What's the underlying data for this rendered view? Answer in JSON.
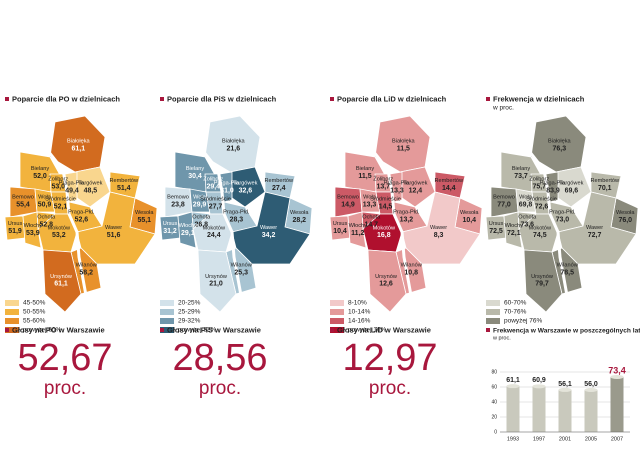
{
  "district_names": [
    "Białołęka",
    "Bielany",
    "Targówek",
    "Bemowo",
    "Żoliborz",
    "Praga-Płn.",
    "Wola",
    "Śródmieście",
    "Praga-Płd.",
    "Rembertów",
    "Wesoła",
    "Ursus",
    "Ochota",
    "Włochy",
    "Mokotów",
    "Wawer",
    "Wilanów",
    "Ursynów"
  ],
  "maps": [
    {
      "title": "Poparcie dla PO w dzielnicach",
      "values": [
        "61,1",
        "52,0",
        "48,5",
        "55,4",
        "53,0",
        "49,4",
        "50,9",
        "52,1",
        "52,6",
        "51,4",
        "55,1",
        "51,9",
        "52,8",
        "53,9",
        "53,2",
        "51,6",
        "58,2",
        "61,1"
      ],
      "colors": [
        "#d26b1f",
        "#f2b33d",
        "#f9d68e",
        "#e8912b",
        "#f2b33d",
        "#f9d68e",
        "#f2b33d",
        "#f2b33d",
        "#f2b33d",
        "#f2b33d",
        "#e8912b",
        "#f2b33d",
        "#f2b33d",
        "#f2b33d",
        "#f2b33d",
        "#f2b33d",
        "#e8912b",
        "#d26b1f"
      ],
      "legend": [
        {
          "label": "45-50%",
          "color": "#f9d68e"
        },
        {
          "label": "50-55%",
          "color": "#f2b33d"
        },
        {
          "label": "55-60%",
          "color": "#e8912b"
        },
        {
          "label": "powyżej 60%",
          "color": "#d26b1f"
        }
      ],
      "total_label": "Głosy na PO w Warszawie",
      "total_value": "52,67",
      "total_unit": "proc."
    },
    {
      "title": "Poparcie dla PiS w dzielnicach",
      "values": [
        "21,6",
        "30,4",
        "32,6",
        "23,8",
        "29,4",
        "31,0",
        "29,9",
        "27,7",
        "28,3",
        "27,4",
        "28,2",
        "31,2",
        "26,8",
        "29,1",
        "24,4",
        "34,2",
        "25,3",
        "21,0"
      ],
      "colors": [
        "#d3e2ea",
        "#6f96ab",
        "#2e5c74",
        "#d3e2ea",
        "#6f96ab",
        "#6f96ab",
        "#6f96ab",
        "#a8c4d2",
        "#a8c4d2",
        "#a8c4d2",
        "#a8c4d2",
        "#6f96ab",
        "#a8c4d2",
        "#6f96ab",
        "#d3e2ea",
        "#2e5c74",
        "#a8c4d2",
        "#d3e2ea"
      ],
      "legend": [
        {
          "label": "20-25%",
          "color": "#d3e2ea"
        },
        {
          "label": "25-29%",
          "color": "#a8c4d2"
        },
        {
          "label": "29-32%",
          "color": "#6f96ab"
        },
        {
          "label": "powyżej 32%",
          "color": "#2e5c74"
        }
      ],
      "total_label": "Głosy na PiS w Warszawie",
      "total_value": "28,56",
      "total_unit": "proc."
    },
    {
      "title": "Poparcie dla LiD w dzielnicach",
      "values": [
        "11,5",
        "11,5",
        "12,4",
        "14,9",
        "13,7",
        "13,3",
        "13,3",
        "14,5",
        "13,2",
        "14,4",
        "10,4",
        "10,4",
        "14,7",
        "11,2",
        "16,8",
        "8,3",
        "10,8",
        "12,6"
      ],
      "colors": [
        "#e49a9a",
        "#e49a9a",
        "#e49a9a",
        "#cc5a66",
        "#e49a9a",
        "#e49a9a",
        "#e49a9a",
        "#cc5a66",
        "#e49a9a",
        "#cc5a66",
        "#e49a9a",
        "#e49a9a",
        "#cc5a66",
        "#e49a9a",
        "#b0102e",
        "#f2c9c9",
        "#e49a9a",
        "#e49a9a"
      ],
      "legend": [
        {
          "label": "8-10%",
          "color": "#f2c9c9"
        },
        {
          "label": "10-14%",
          "color": "#e49a9a"
        },
        {
          "label": "14-16%",
          "color": "#cc5a66"
        },
        {
          "label": "powyżej 16%",
          "color": "#b0102e"
        }
      ],
      "total_label": "Głosy na LiD w Warszawie",
      "total_value": "12,97",
      "total_unit": "proc."
    },
    {
      "title": "Frekwencja w dzielnicach",
      "subtitle": "w proc.",
      "values": [
        "76,3",
        "73,7",
        "69,6",
        "77,0",
        "75,7",
        "83,9",
        "69,8",
        "72,6",
        "73,0",
        "70,1",
        "76,0",
        "72,5",
        "73,6",
        "72,1",
        "74,5",
        "72,7",
        "78,5",
        "79,7"
      ],
      "colors": [
        "#8a8a7c",
        "#b9b9aa",
        "#d9d9cf",
        "#8a8a7c",
        "#b9b9aa",
        "#8a8a7c",
        "#d9d9cf",
        "#b9b9aa",
        "#b9b9aa",
        "#b9b9aa",
        "#8a8a7c",
        "#b9b9aa",
        "#b9b9aa",
        "#b9b9aa",
        "#b9b9aa",
        "#b9b9aa",
        "#8a8a7c",
        "#8a8a7c"
      ],
      "legend": [
        {
          "label": "60-70%",
          "color": "#d9d9cf"
        },
        {
          "label": "70-76%",
          "color": "#b9b9aa"
        },
        {
          "label": "powyżej 76%",
          "color": "#8a8a7c"
        }
      ]
    }
  ],
  "chart_data": {
    "type": "bar",
    "title": "Frekwencja w Warszawie w poszczególnych latach",
    "subtitle": "w proc.",
    "categories": [
      "1993",
      "1997",
      "2001",
      "2005",
      "2007"
    ],
    "values": [
      61.1,
      60.9,
      56.1,
      56.0,
      73.4
    ],
    "value_labels": [
      "61,1",
      "60,9",
      "56,1",
      "56,0",
      "73,4"
    ],
    "colors": [
      "#c9c9bd",
      "#c9c9bd",
      "#c9c9bd",
      "#c9c9bd",
      "#9a9a8c"
    ],
    "label_colors": [
      "#222222",
      "#222222",
      "#222222",
      "#222222",
      "#a8173d"
    ],
    "ylim": [
      0,
      80
    ],
    "yticks": [
      0,
      20,
      40,
      60,
      80
    ],
    "grid": true
  }
}
